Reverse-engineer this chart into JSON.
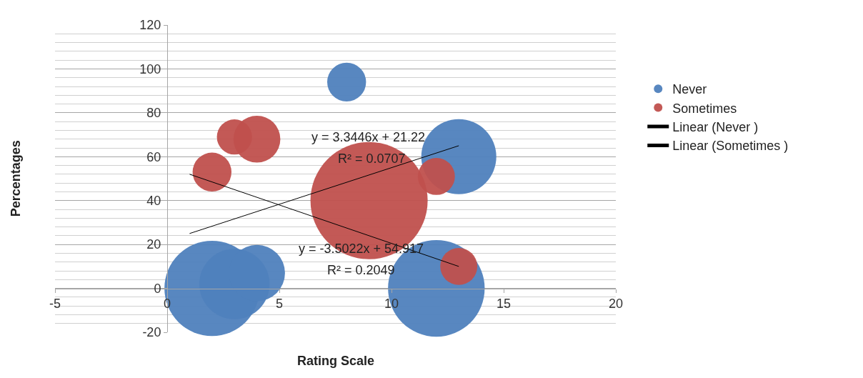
{
  "chart_data": {
    "type": "bubble",
    "xlabel": "Rating Scale",
    "ylabel": "Percentages",
    "xlim": [
      -5,
      20
    ],
    "xticks": [
      -5,
      0,
      5,
      10,
      15,
      20
    ],
    "ylim": [
      -20,
      120
    ],
    "yticks": [
      -20,
      0,
      20,
      40,
      60,
      80,
      100,
      120
    ],
    "grid": "y",
    "legend": "right",
    "series": [
      {
        "name": "Never",
        "color": "#4f81bd",
        "x": [
          2,
          3,
          4,
          8,
          12,
          13
        ],
        "values": [
          0,
          2,
          7,
          94,
          0,
          60
        ],
        "sizes": [
          0.66,
          0.36,
          0.23,
          0.11,
          0.68,
          0.41
        ]
      },
      {
        "name": "Sometimes",
        "color": "#c0504d",
        "x": [
          2,
          3,
          4,
          9,
          12,
          13
        ],
        "values": [
          53,
          69,
          68,
          40,
          51,
          10
        ],
        "sizes": [
          0.11,
          0.09,
          0.16,
          1,
          0.1,
          0.1
        ]
      },
      {
        "name": "Linear (Never )",
        "type": "line",
        "color": "#000000",
        "x": [
          1,
          13
        ],
        "values": [
          25,
          65
        ]
      },
      {
        "name": "Linear (Sometimes )",
        "type": "line",
        "color": "#000000",
        "x": [
          1,
          13
        ],
        "values": [
          52,
          10
        ]
      }
    ],
    "annotations": [
      "y = 3.3446x + 21.22",
      "R² = 0.0707",
      "y = -3.5022x + 54.917",
      "R² = 0.2049"
    ]
  }
}
